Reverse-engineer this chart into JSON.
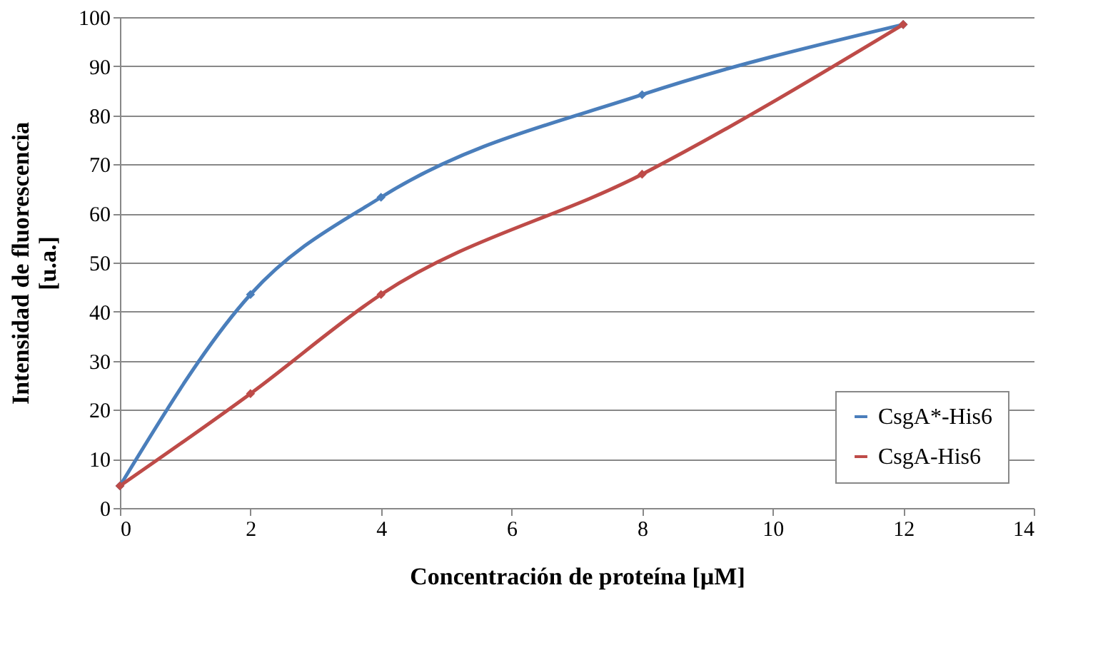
{
  "chart_data": {
    "type": "line",
    "xlabel": "Concentración de proteína [µM]",
    "ylabel": "Intensidad de fluorescencia\n[u.a.]",
    "x": [
      0,
      2,
      4,
      8,
      12
    ],
    "series": [
      {
        "name": "CsgA*-His6",
        "color": "#4a7ebb",
        "values": [
          4.5,
          43.5,
          63.3,
          84.2,
          98.5
        ]
      },
      {
        "name": "CsgA-His6",
        "color": "#be4b48",
        "values": [
          4.5,
          23.3,
          43.5,
          68,
          98.5
        ]
      }
    ],
    "xlim": [
      0,
      14
    ],
    "xticks": [
      0,
      2,
      4,
      6,
      8,
      10,
      12,
      14
    ],
    "ylim": [
      0,
      100
    ],
    "yticks": [
      0,
      10,
      20,
      30,
      40,
      50,
      60,
      70,
      80,
      90,
      100
    ],
    "grid": "y",
    "legend": "bottom right",
    "marker": "diamond",
    "line_style": "solid"
  }
}
